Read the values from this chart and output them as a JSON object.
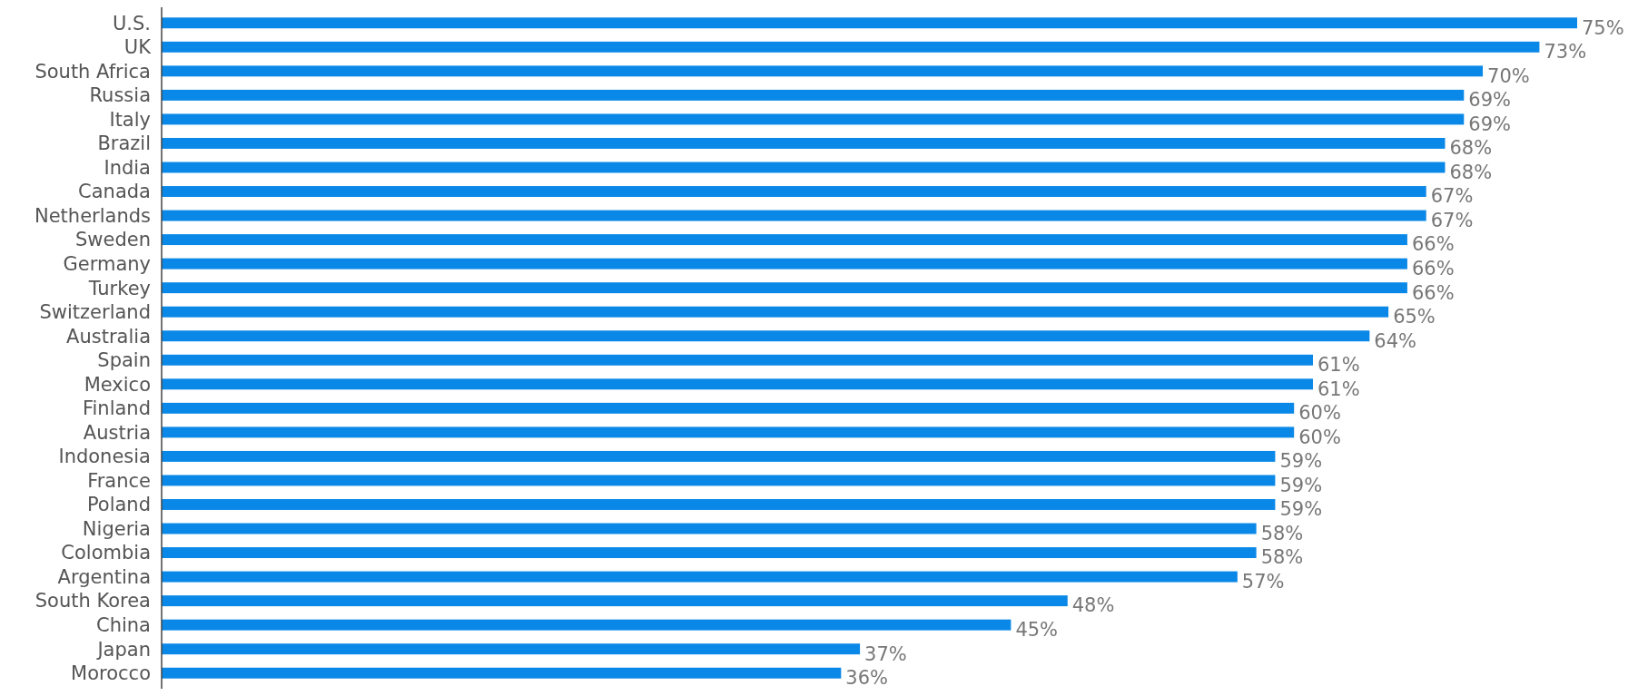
{
  "chart_data": {
    "type": "bar",
    "orientation": "horizontal",
    "categories": [
      "U.S.",
      "UK",
      "South Africa",
      "Russia",
      "Italy",
      "Brazil",
      "India",
      "Canada",
      "Netherlands",
      "Sweden",
      "Germany",
      "Turkey",
      "Switzerland",
      "Australia",
      "Spain",
      "Mexico",
      "Finland",
      "Austria",
      "Indonesia",
      "France",
      "Poland",
      "Nigeria",
      "Colombia",
      "Argentina",
      "South Korea",
      "China",
      "Japan",
      "Morocco"
    ],
    "values": [
      75,
      73,
      70,
      69,
      69,
      68,
      68,
      67,
      67,
      66,
      66,
      66,
      65,
      64,
      61,
      61,
      60,
      60,
      59,
      59,
      59,
      58,
      58,
      57,
      48,
      45,
      37,
      36
    ],
    "value_labels": [
      "75%",
      "73%",
      "70%",
      "69%",
      "69%",
      "68%",
      "68%",
      "67%",
      "67%",
      "66%",
      "66%",
      "66%",
      "65%",
      "64%",
      "61%",
      "61%",
      "60%",
      "60%",
      "59%",
      "59%",
      "59%",
      "58%",
      "58%",
      "57%",
      "48%",
      "45%",
      "37%",
      "36%"
    ],
    "color": "#0a88e8"
  }
}
